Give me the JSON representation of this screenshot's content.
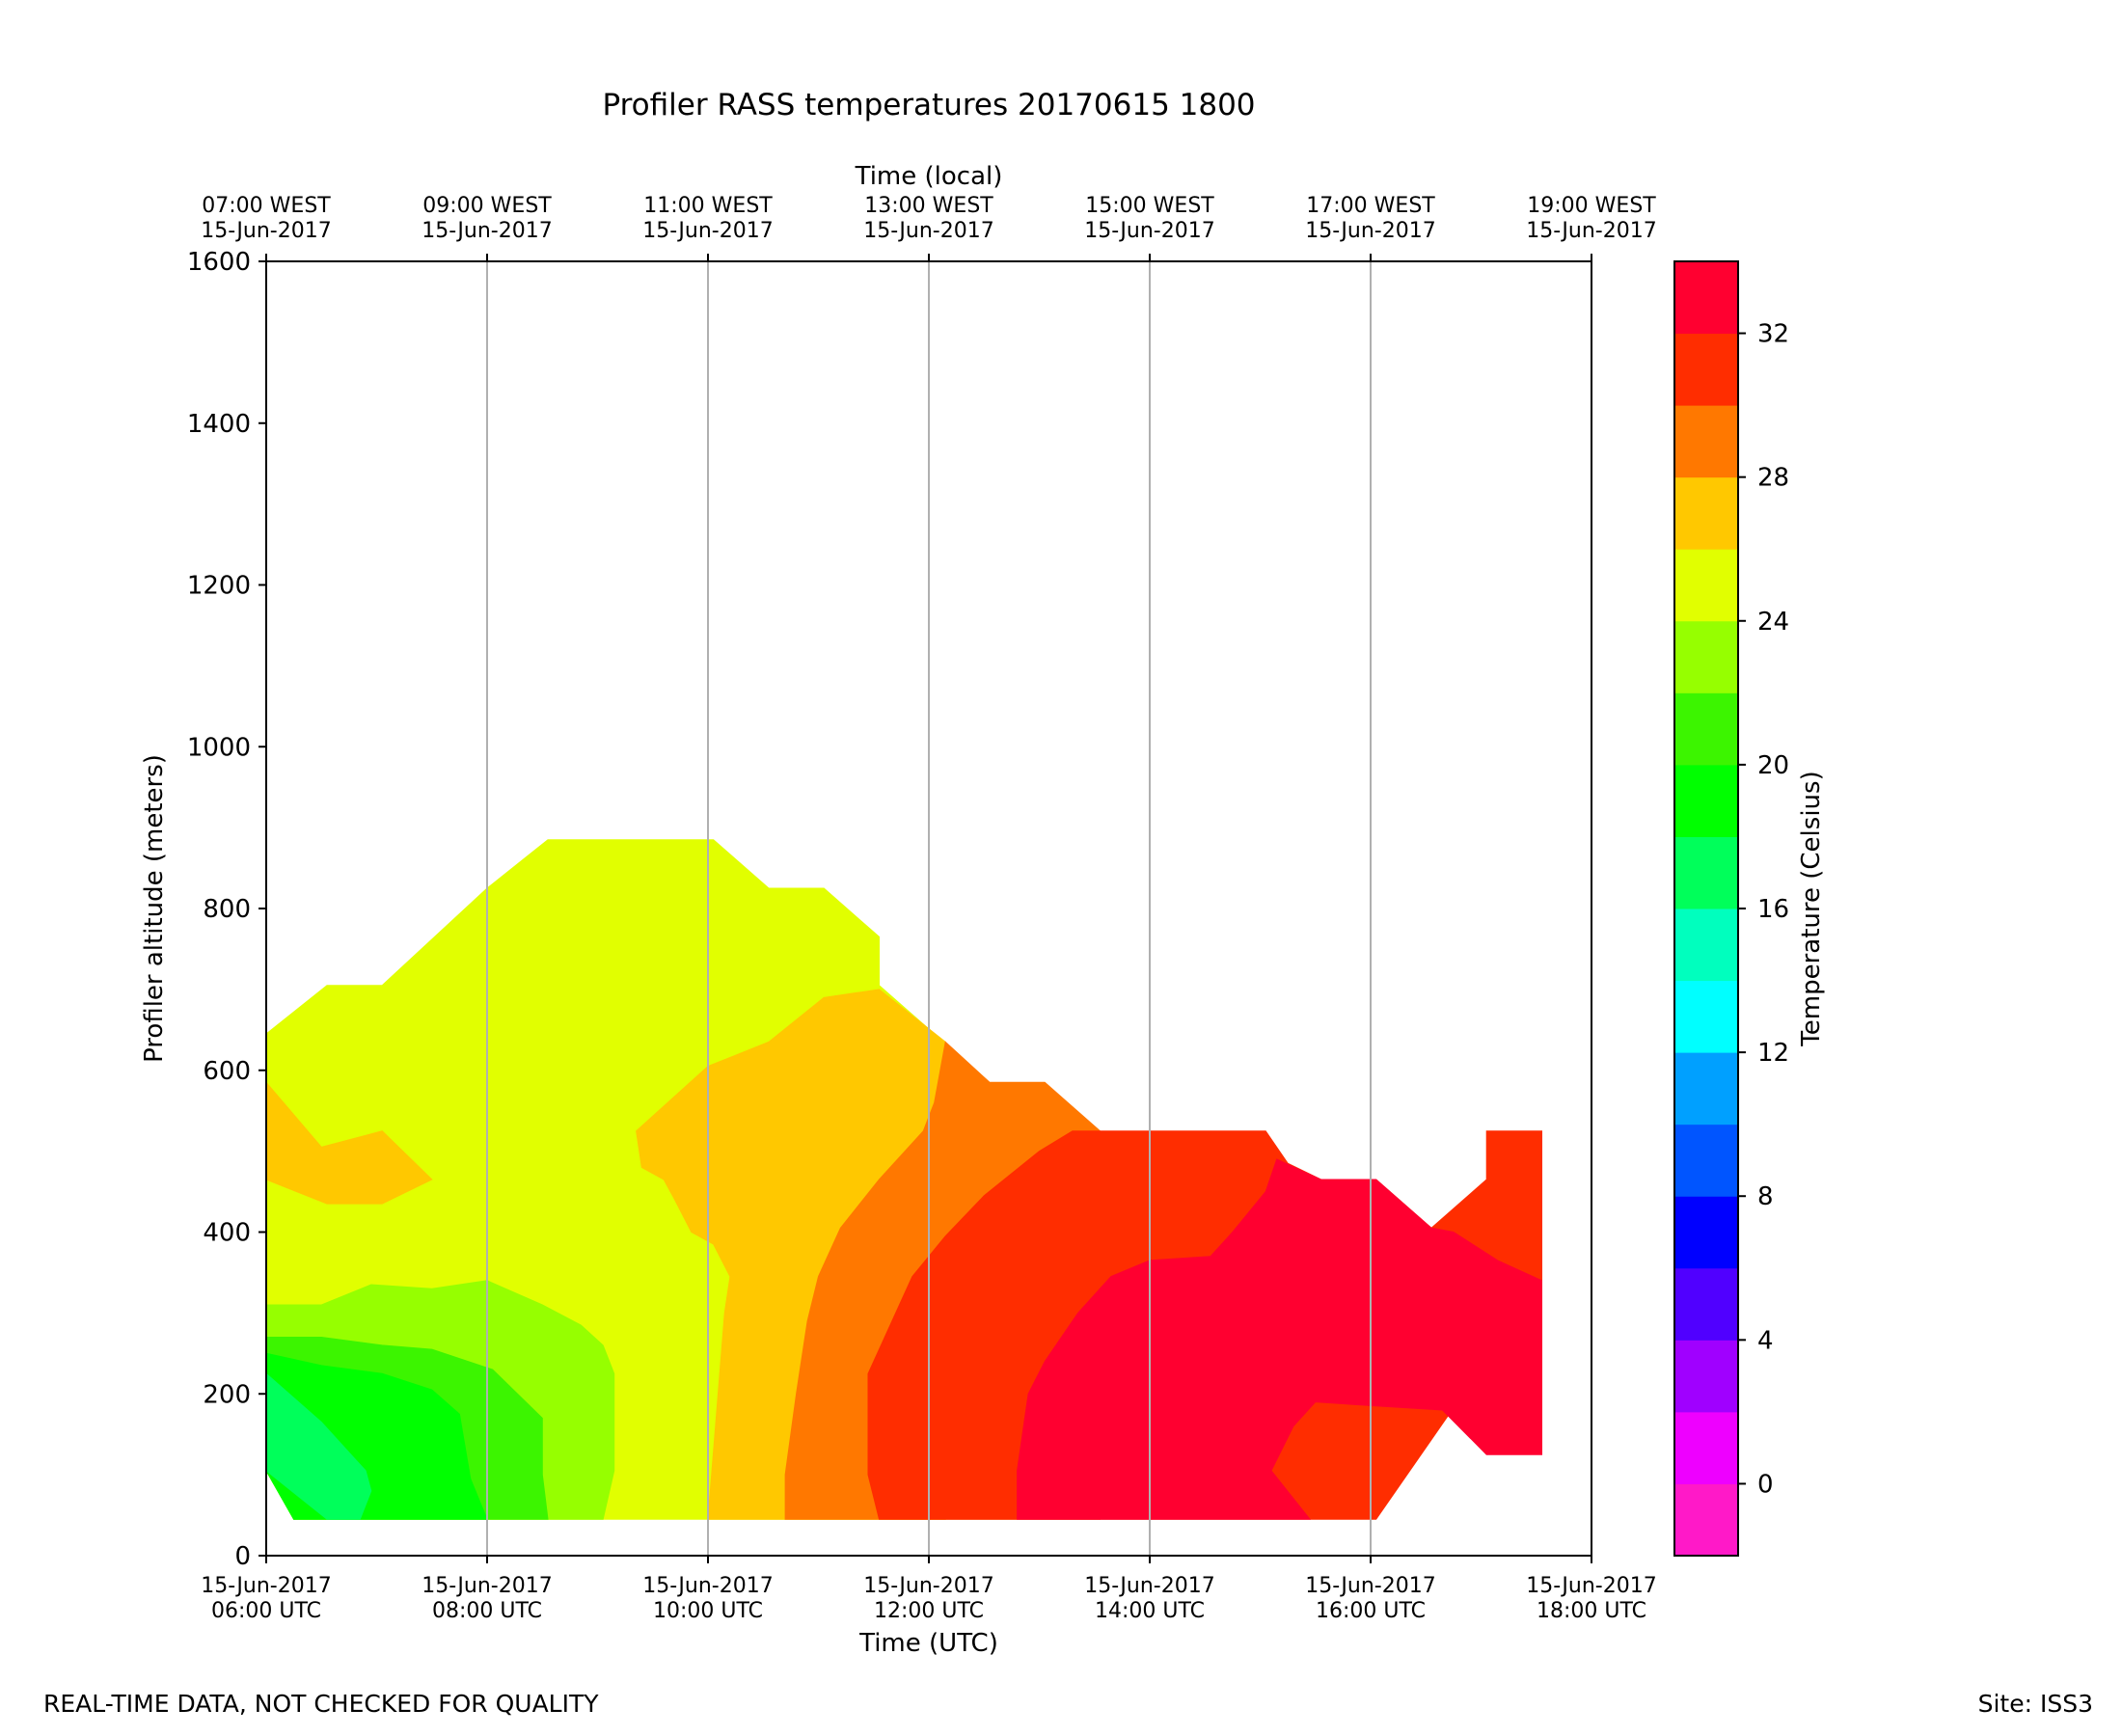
{
  "chart_data": {
    "type": "heatmap",
    "title": "Profiler RASS temperatures 20170615 1800",
    "xlabel": "Time (UTC)",
    "xlabel_top": "Time (local)",
    "ylabel": "Profiler altitude (meters)",
    "ylim": [
      0,
      1600
    ],
    "y_ticks": [
      0,
      200,
      400,
      600,
      800,
      1000,
      1200,
      1400,
      1600
    ],
    "xlim_hours_utc": [
      6,
      18
    ],
    "x_ticks_hours": [
      6,
      8,
      10,
      12,
      14,
      16,
      18
    ],
    "x_tick_labels_bottom": [
      [
        "15-Jun-2017",
        "06:00 UTC"
      ],
      [
        "15-Jun-2017",
        "08:00 UTC"
      ],
      [
        "15-Jun-2017",
        "10:00 UTC"
      ],
      [
        "15-Jun-2017",
        "12:00 UTC"
      ],
      [
        "15-Jun-2017",
        "14:00 UTC"
      ],
      [
        "15-Jun-2017",
        "16:00 UTC"
      ],
      [
        "15-Jun-2017",
        "18:00 UTC"
      ]
    ],
    "x_tick_labels_top": [
      [
        "07:00 WEST",
        "15-Jun-2017"
      ],
      [
        "09:00 WEST",
        "15-Jun-2017"
      ],
      [
        "11:00 WEST",
        "15-Jun-2017"
      ],
      [
        "13:00 WEST",
        "15-Jun-2017"
      ],
      [
        "15:00 WEST",
        "15-Jun-2017"
      ],
      [
        "17:00 WEST",
        "15-Jun-2017"
      ],
      [
        "19:00 WEST",
        "15-Jun-2017"
      ]
    ],
    "grid": "vertical",
    "colorbar": {
      "label": "Temperature (Celsius)",
      "range": [
        -2,
        34
      ],
      "ticks": [
        0,
        4,
        8,
        12,
        16,
        20,
        24,
        28,
        32
      ],
      "levels": [
        {
          "lo": -2,
          "hi": 0,
          "color": "#ff19c8"
        },
        {
          "lo": 0,
          "hi": 2,
          "color": "#ee00ff"
        },
        {
          "lo": 2,
          "hi": 4,
          "color": "#a000ff"
        },
        {
          "lo": 4,
          "hi": 6,
          "color": "#5000ff"
        },
        {
          "lo": 6,
          "hi": 8,
          "color": "#0000ff"
        },
        {
          "lo": 8,
          "hi": 10,
          "color": "#0055ff"
        },
        {
          "lo": 10,
          "hi": 12,
          "color": "#00a0ff"
        },
        {
          "lo": 12,
          "hi": 14,
          "color": "#00ffff"
        },
        {
          "lo": 14,
          "hi": 16,
          "color": "#00ffbe"
        },
        {
          "lo": 16,
          "hi": 18,
          "color": "#00ff5a"
        },
        {
          "lo": 18,
          "hi": 20,
          "color": "#00ff00"
        },
        {
          "lo": 20,
          "hi": 22,
          "color": "#3cf500"
        },
        {
          "lo": 22,
          "hi": 24,
          "color": "#96ff00"
        },
        {
          "lo": 24,
          "hi": 26,
          "color": "#e1ff00"
        },
        {
          "lo": 26,
          "hi": 28,
          "color": "#ffc800"
        },
        {
          "lo": 28,
          "hi": 30,
          "color": "#ff7800"
        },
        {
          "lo": 30,
          "hi": 32,
          "color": "#ff2d00"
        },
        {
          "lo": 32,
          "hi": 34,
          "color": "#ff0030"
        }
      ]
    },
    "contour_regions": [
      {
        "level": "24-26",
        "color": "#e1ff00",
        "points": [
          [
            6,
            645
          ],
          [
            6.55,
            705
          ],
          [
            7.05,
            705
          ],
          [
            8,
            825
          ],
          [
            8.55,
            885
          ],
          [
            10.05,
            885
          ],
          [
            10.55,
            825
          ],
          [
            11.05,
            825
          ],
          [
            11.55,
            765
          ],
          [
            11.55,
            705
          ],
          [
            12.05,
            645
          ],
          [
            12.15,
            45
          ],
          [
            6.25,
            45
          ],
          [
            6,
            105
          ]
        ]
      },
      {
        "level": "26-28",
        "color": "#ffc800",
        "points": [
          [
            6,
            585
          ],
          [
            6.5,
            505
          ],
          [
            7.05,
            525
          ],
          [
            7.5,
            465
          ],
          [
            7.05,
            435
          ],
          [
            6.55,
            435
          ],
          [
            6,
            465
          ]
        ]
      },
      {
        "level": "26-28",
        "color": "#ffc800",
        "points": [
          [
            9.35,
            525
          ],
          [
            10,
            605
          ],
          [
            10.55,
            635
          ],
          [
            11.05,
            690
          ],
          [
            11.55,
            700
          ],
          [
            12.15,
            635
          ],
          [
            12.15,
            45
          ],
          [
            10,
            45
          ],
          [
            10.15,
            300
          ],
          [
            10.2,
            345
          ],
          [
            10.05,
            385
          ],
          [
            9.85,
            400
          ],
          [
            9.7,
            440
          ],
          [
            9.6,
            465
          ],
          [
            9.4,
            480
          ]
        ]
      },
      {
        "level": "28-30",
        "color": "#ff7800",
        "points": [
          [
            12.15,
            635
          ],
          [
            12.55,
            585
          ],
          [
            13.05,
            585
          ],
          [
            13.55,
            525
          ],
          [
            13.55,
            45
          ],
          [
            10.7,
            45
          ],
          [
            10.7,
            100
          ],
          [
            10.8,
            200
          ],
          [
            10.9,
            290
          ],
          [
            11.0,
            345
          ],
          [
            11.2,
            405
          ],
          [
            11.55,
            465
          ],
          [
            11.95,
            525
          ],
          [
            12.05,
            560
          ]
        ]
      },
      {
        "level": "30-32",
        "color": "#ff2d00",
        "points": [
          [
            13.55,
            525
          ],
          [
            15.05,
            525
          ],
          [
            15.25,
            485
          ],
          [
            15.55,
            465
          ],
          [
            16.05,
            465
          ],
          [
            16.55,
            405
          ],
          [
            17.05,
            465
          ],
          [
            17.05,
            525
          ],
          [
            17.55,
            525
          ],
          [
            17.55,
            340
          ],
          [
            16.05,
            45
          ],
          [
            11.55,
            45
          ],
          [
            11.45,
            100
          ],
          [
            11.45,
            225
          ],
          [
            11.55,
            255
          ],
          [
            11.7,
            300
          ],
          [
            11.85,
            345
          ],
          [
            12.15,
            395
          ],
          [
            12.5,
            445
          ],
          [
            13.0,
            500
          ],
          [
            13.3,
            525
          ]
        ]
      },
      {
        "level": "32-34",
        "color": "#ff0030",
        "points": [
          [
            15.15,
            490
          ],
          [
            15.55,
            465
          ],
          [
            16.05,
            465
          ],
          [
            16.55,
            405
          ],
          [
            16.75,
            400
          ],
          [
            17.15,
            365
          ],
          [
            17.55,
            340
          ],
          [
            17.55,
            125
          ],
          [
            17.05,
            125
          ],
          [
            16.65,
            180
          ],
          [
            16.05,
            185
          ],
          [
            15.5,
            190
          ],
          [
            15.3,
            160
          ],
          [
            15.1,
            105
          ],
          [
            15.45,
            45
          ],
          [
            12.8,
            45
          ],
          [
            12.8,
            105
          ],
          [
            12.9,
            200
          ],
          [
            13.05,
            240
          ],
          [
            13.35,
            300
          ],
          [
            13.65,
            345
          ],
          [
            14.0,
            365
          ],
          [
            14.55,
            370
          ],
          [
            14.75,
            400
          ],
          [
            15.05,
            450
          ]
        ]
      },
      {
        "level": "22-24",
        "color": "#96ff00",
        "points": [
          [
            6,
            310
          ],
          [
            6.5,
            310
          ],
          [
            6.95,
            335
          ],
          [
            7.5,
            330
          ],
          [
            8,
            340
          ],
          [
            8.5,
            310
          ],
          [
            8.85,
            285
          ],
          [
            9.05,
            260
          ],
          [
            9.15,
            225
          ],
          [
            9.15,
            105
          ],
          [
            9.05,
            45
          ],
          [
            6.25,
            45
          ],
          [
            6,
            105
          ]
        ]
      },
      {
        "level": "20-22",
        "color": "#3cf500",
        "points": [
          [
            6,
            270
          ],
          [
            6.5,
            270
          ],
          [
            7.05,
            260
          ],
          [
            7.5,
            255
          ],
          [
            8.05,
            230
          ],
          [
            8.5,
            170
          ],
          [
            8.5,
            100
          ],
          [
            8.55,
            45
          ],
          [
            6.25,
            45
          ],
          [
            6,
            105
          ]
        ]
      },
      {
        "level": "18-20",
        "color": "#00ff00",
        "points": [
          [
            6,
            250
          ],
          [
            6.5,
            235
          ],
          [
            7.05,
            225
          ],
          [
            7.5,
            205
          ],
          [
            7.75,
            175
          ],
          [
            7.85,
            95
          ],
          [
            8,
            45
          ],
          [
            6.25,
            45
          ],
          [
            6,
            105
          ]
        ]
      },
      {
        "level": "16-18",
        "color": "#00ff5a",
        "points": [
          [
            6,
            225
          ],
          [
            6.5,
            165
          ],
          [
            6.8,
            120
          ],
          [
            6.9,
            105
          ],
          [
            6.95,
            80
          ],
          [
            6.85,
            45
          ],
          [
            6.55,
            45
          ],
          [
            6,
            105
          ]
        ]
      }
    ]
  },
  "footer": {
    "left": "REAL-TIME DATA, NOT CHECKED FOR QUALITY",
    "right": "Site: ISS3"
  }
}
